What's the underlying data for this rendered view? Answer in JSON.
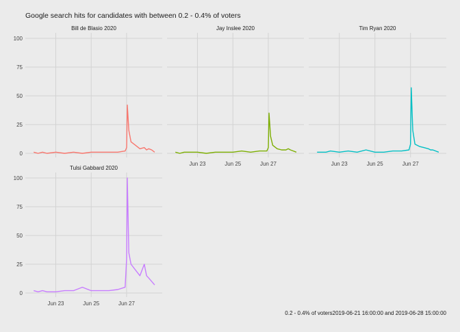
{
  "chart_title": "Google search hits for candidates with between 0.2 - 0.4% of voters",
  "caption": "0.2 - 0.4% of voters2019-06-21 16:00:00 and 2019-06-28 15:00:00",
  "chart_data": {
    "type": "line",
    "x_domain": [
      "2019-06-21 16:00",
      "2019-06-28 15:00"
    ],
    "ylim": [
      0,
      100
    ],
    "y_ticks": [
      0,
      25,
      50,
      75,
      100
    ],
    "x_ticks": [
      {
        "label": "Jun 23",
        "x": "2019-06-23 00:00"
      },
      {
        "label": "Jun 25",
        "x": "2019-06-25 00:00"
      },
      {
        "label": "Jun 27",
        "x": "2019-06-27 00:00"
      }
    ],
    "grid": true,
    "legend": "none",
    "panels": [
      {
        "name": "Bill de Blasio 2020",
        "color": "#f8766d",
        "points": [
          [
            "2019-06-21 18:00",
            1
          ],
          [
            "2019-06-22 00:00",
            0
          ],
          [
            "2019-06-22 06:00",
            1
          ],
          [
            "2019-06-22 12:00",
            0
          ],
          [
            "2019-06-23 00:00",
            1
          ],
          [
            "2019-06-23 12:00",
            0
          ],
          [
            "2019-06-24 00:00",
            1
          ],
          [
            "2019-06-24 12:00",
            0
          ],
          [
            "2019-06-25 00:00",
            1
          ],
          [
            "2019-06-25 12:00",
            1
          ],
          [
            "2019-06-26 00:00",
            1
          ],
          [
            "2019-06-26 12:00",
            1
          ],
          [
            "2019-06-26 22:00",
            2
          ],
          [
            "2019-06-27 00:00",
            5
          ],
          [
            "2019-06-27 01:00",
            42
          ],
          [
            "2019-06-27 03:00",
            20
          ],
          [
            "2019-06-27 06:00",
            10
          ],
          [
            "2019-06-27 12:00",
            7
          ],
          [
            "2019-06-27 18:00",
            4
          ],
          [
            "2019-06-28 00:00",
            5
          ],
          [
            "2019-06-28 03:00",
            3
          ],
          [
            "2019-06-28 06:00",
            4
          ],
          [
            "2019-06-28 10:00",
            3
          ],
          [
            "2019-06-28 14:00",
            1
          ]
        ]
      },
      {
        "name": "Jay Inslee 2020",
        "color": "#7cae00",
        "points": [
          [
            "2019-06-21 18:00",
            1
          ],
          [
            "2019-06-22 00:00",
            0
          ],
          [
            "2019-06-22 06:00",
            1
          ],
          [
            "2019-06-22 12:00",
            1
          ],
          [
            "2019-06-23 00:00",
            1
          ],
          [
            "2019-06-23 12:00",
            0
          ],
          [
            "2019-06-24 00:00",
            1
          ],
          [
            "2019-06-24 12:00",
            1
          ],
          [
            "2019-06-25 00:00",
            1
          ],
          [
            "2019-06-25 12:00",
            2
          ],
          [
            "2019-06-26 00:00",
            1
          ],
          [
            "2019-06-26 12:00",
            2
          ],
          [
            "2019-06-26 22:00",
            2
          ],
          [
            "2019-06-27 00:00",
            5
          ],
          [
            "2019-06-27 01:00",
            35
          ],
          [
            "2019-06-27 03:00",
            15
          ],
          [
            "2019-06-27 06:00",
            7
          ],
          [
            "2019-06-27 12:00",
            4
          ],
          [
            "2019-06-27 18:00",
            3
          ],
          [
            "2019-06-28 00:00",
            3
          ],
          [
            "2019-06-28 03:00",
            4
          ],
          [
            "2019-06-28 06:00",
            3
          ],
          [
            "2019-06-28 10:00",
            2
          ],
          [
            "2019-06-28 14:00",
            1
          ]
        ]
      },
      {
        "name": "Tim Ryan 2020",
        "color": "#00bfc4",
        "points": [
          [
            "2019-06-21 18:00",
            1
          ],
          [
            "2019-06-22 00:00",
            1
          ],
          [
            "2019-06-22 06:00",
            1
          ],
          [
            "2019-06-22 12:00",
            2
          ],
          [
            "2019-06-23 00:00",
            1
          ],
          [
            "2019-06-23 12:00",
            2
          ],
          [
            "2019-06-24 00:00",
            1
          ],
          [
            "2019-06-24 12:00",
            3
          ],
          [
            "2019-06-25 00:00",
            1
          ],
          [
            "2019-06-25 12:00",
            1
          ],
          [
            "2019-06-26 00:00",
            2
          ],
          [
            "2019-06-26 12:00",
            2
          ],
          [
            "2019-06-26 22:00",
            3
          ],
          [
            "2019-06-27 00:00",
            8
          ],
          [
            "2019-06-27 01:00",
            57
          ],
          [
            "2019-06-27 03:00",
            20
          ],
          [
            "2019-06-27 06:00",
            8
          ],
          [
            "2019-06-27 12:00",
            6
          ],
          [
            "2019-06-27 18:00",
            5
          ],
          [
            "2019-06-28 00:00",
            4
          ],
          [
            "2019-06-28 03:00",
            3
          ],
          [
            "2019-06-28 06:00",
            3
          ],
          [
            "2019-06-28 10:00",
            2
          ],
          [
            "2019-06-28 14:00",
            1
          ]
        ]
      },
      {
        "name": "Tulsi Gabbard 2020",
        "color": "#c77cff",
        "points": [
          [
            "2019-06-21 18:00",
            2
          ],
          [
            "2019-06-22 00:00",
            1
          ],
          [
            "2019-06-22 06:00",
            2
          ],
          [
            "2019-06-22 12:00",
            1
          ],
          [
            "2019-06-23 00:00",
            1
          ],
          [
            "2019-06-23 12:00",
            2
          ],
          [
            "2019-06-24 00:00",
            2
          ],
          [
            "2019-06-24 12:00",
            5
          ],
          [
            "2019-06-25 00:00",
            2
          ],
          [
            "2019-06-25 12:00",
            2
          ],
          [
            "2019-06-26 00:00",
            2
          ],
          [
            "2019-06-26 12:00",
            3
          ],
          [
            "2019-06-26 22:00",
            5
          ],
          [
            "2019-06-27 00:00",
            30
          ],
          [
            "2019-06-27 01:00",
            100
          ],
          [
            "2019-06-27 03:00",
            35
          ],
          [
            "2019-06-27 06:00",
            25
          ],
          [
            "2019-06-27 12:00",
            20
          ],
          [
            "2019-06-27 18:00",
            15
          ],
          [
            "2019-06-28 00:00",
            25
          ],
          [
            "2019-06-28 03:00",
            15
          ],
          [
            "2019-06-28 06:00",
            13
          ],
          [
            "2019-06-28 10:00",
            10
          ],
          [
            "2019-06-28 14:00",
            7
          ]
        ]
      }
    ]
  }
}
